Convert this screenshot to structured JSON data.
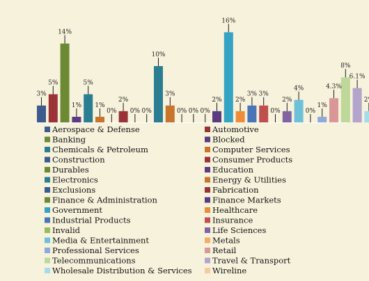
{
  "chart_data": {
    "type": "bar",
    "title": "",
    "xlabel": "",
    "ylabel": "",
    "ylim": [
      0,
      16
    ],
    "grid": false,
    "legend_placement": "bottom",
    "series": [
      {
        "name": "Aerospace & Defense",
        "value": 3,
        "label": "3%",
        "color": "#3d5b8c"
      },
      {
        "name": "Automotive",
        "value": 5,
        "label": "5%",
        "color": "#9a3236"
      },
      {
        "name": "Banking",
        "value": 14,
        "label": "14%",
        "color": "#6c8a35"
      },
      {
        "name": "Blocked",
        "value": 1,
        "label": "1%",
        "color": "#5b3c82"
      },
      {
        "name": "Chemicals & Petroleum",
        "value": 5,
        "label": "5%",
        "color": "#2b7e92"
      },
      {
        "name": "Computer Services",
        "value": 1,
        "label": "1%",
        "color": "#c9742d"
      },
      {
        "name": "Construction",
        "value": 0,
        "label": "0%",
        "color": "#3d5b8c"
      },
      {
        "name": "Consumer Products",
        "value": 2,
        "label": "2%",
        "color": "#9a3236"
      },
      {
        "name": "Durables",
        "value": 0,
        "label": "0%",
        "color": "#6c8a35"
      },
      {
        "name": "Education",
        "value": 0,
        "label": "0%",
        "color": "#5b3c82"
      },
      {
        "name": "Electronics",
        "value": 10,
        "label": "10%",
        "color": "#2b7e92"
      },
      {
        "name": "Energy & Utilities",
        "value": 3,
        "label": "3%",
        "color": "#c9742d"
      },
      {
        "name": "Exclusions",
        "value": 0,
        "label": "0%",
        "color": "#3d5b8c"
      },
      {
        "name": "Fabrication",
        "value": 0,
        "label": "0%",
        "color": "#9a3236"
      },
      {
        "name": "Finance & Administration",
        "value": 0,
        "label": "0%",
        "color": "#6c8a35"
      },
      {
        "name": "Finance Markets",
        "value": 2,
        "label": "2%",
        "color": "#5b3c82"
      },
      {
        "name": "Government",
        "value": 16,
        "label": "16%",
        "color": "#34a3c4"
      },
      {
        "name": "Healthcare",
        "value": 2,
        "label": "2%",
        "color": "#ee8c3a"
      },
      {
        "name": "Industrial Products",
        "value": 3,
        "label": "3%",
        "color": "#4a76b8"
      },
      {
        "name": "Insurance",
        "value": 3,
        "label": "3%",
        "color": "#c0504d"
      },
      {
        "name": "Invalid",
        "value": 0,
        "label": "0%",
        "color": "#9bbb59"
      },
      {
        "name": "Life Sciences",
        "value": 2,
        "label": "2%",
        "color": "#8064a2"
      },
      {
        "name": "Media & Entertainment",
        "value": 4,
        "label": "4%",
        "color": "#6cc0d8"
      },
      {
        "name": "Metals",
        "value": 0,
        "label": "0%",
        "color": "#f5aa68"
      },
      {
        "name": "Professional Services",
        "value": 1,
        "label": "1%",
        "color": "#8fa9d9"
      },
      {
        "name": "Retail",
        "value": 4.3,
        "label": "4.3%",
        "color": "#d99895"
      },
      {
        "name": "Telecommunications",
        "value": 8,
        "label": "8%",
        "color": "#bfd89a"
      },
      {
        "name": "Travel & Transport",
        "value": 6.1,
        "label": "6.1%",
        "color": "#b3a4cc"
      },
      {
        "name": "Wholesale Distribution & Services",
        "value": 2,
        "label": "2%",
        "color": "#a5dbea"
      },
      {
        "name": "Wireline",
        "value": 0,
        "label": "0%",
        "color": "#f8caa4"
      }
    ]
  }
}
